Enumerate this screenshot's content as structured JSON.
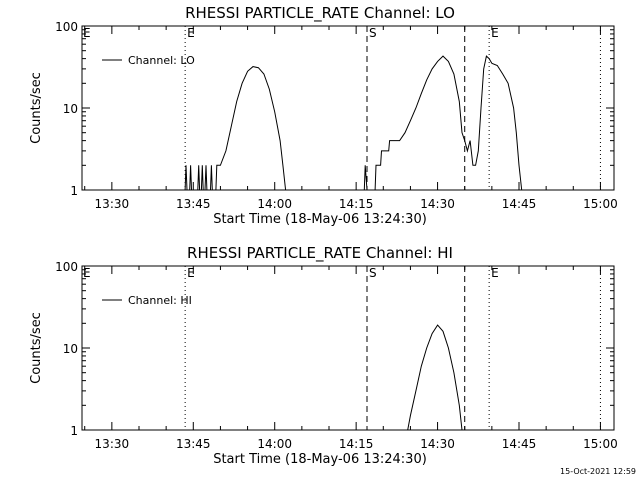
{
  "timestamp": "15-Oct-2021 12:59",
  "chart_data": [
    {
      "type": "line",
      "title": "RHESSI PARTICLE_RATE Channel: LO",
      "xlabel": "Start Time (18-May-06 13:24:30)",
      "ylabel": "Counts/sec",
      "yscale": "log",
      "ylim": [
        1,
        100
      ],
      "xlim": [
        "13:24:30",
        "15:02:30"
      ],
      "y_ticks": [
        "1",
        "10",
        "100"
      ],
      "x_ticks": [
        "13:30",
        "13:45",
        "14:00",
        "14:15",
        "14:30",
        "14:45",
        "15:00"
      ],
      "legend_placement": "top-left",
      "vertical_markers": [
        {
          "time": "13:43:30",
          "style": "dotted",
          "label": "E"
        },
        {
          "time": "14:17:00",
          "style": "dashed",
          "label": "S"
        },
        {
          "time": "14:35:00",
          "style": "dashed",
          "label": ""
        },
        {
          "time": "14:39:30",
          "style": "dotted",
          "label": "E"
        },
        {
          "time": "15:00:00",
          "style": "dotted",
          "label": ""
        }
      ],
      "corner_label": "E",
      "series": [
        {
          "name": "Channel: LO",
          "points": [
            [
              "13:43:30",
              1
            ],
            [
              "13:43:40",
              2
            ],
            [
              "13:43:50",
              1
            ],
            [
              "13:44:20",
              1
            ],
            [
              "13:44:30",
              2
            ],
            [
              "13:44:40",
              1
            ],
            [
              "13:45:50",
              1
            ],
            [
              "13:46:00",
              2
            ],
            [
              "13:46:10",
              1
            ],
            [
              "13:46:30",
              1
            ],
            [
              "13:46:40",
              2
            ],
            [
              "13:46:50",
              1
            ],
            [
              "13:47:10",
              1
            ],
            [
              "13:47:20",
              2
            ],
            [
              "13:47:30",
              1
            ],
            [
              "13:48:10",
              1
            ],
            [
              "13:48:20",
              2
            ],
            [
              "13:48:30",
              1
            ],
            [
              "13:49:10",
              1
            ],
            [
              "13:49:20",
              2
            ],
            [
              "13:50:00",
              2
            ],
            [
              "13:51:00",
              3
            ],
            [
              "13:52:00",
              6
            ],
            [
              "13:53:00",
              12
            ],
            [
              "13:54:00",
              20
            ],
            [
              "13:55:00",
              28
            ],
            [
              "13:56:00",
              32
            ],
            [
              "13:57:00",
              31
            ],
            [
              "13:58:00",
              26
            ],
            [
              "13:59:00",
              17
            ],
            [
              "14:00:00",
              9
            ],
            [
              "14:01:00",
              4
            ],
            [
              "14:01:30",
              2
            ],
            [
              "14:02:00",
              1
            ],
            [
              "14:16:30",
              1
            ],
            [
              "14:16:40",
              2
            ],
            [
              "14:17:00",
              1
            ],
            [
              "14:18:30",
              1
            ],
            [
              "14:18:40",
              2
            ],
            [
              "14:19:00",
              2
            ],
            [
              "14:19:30",
              2
            ],
            [
              "14:19:40",
              3
            ],
            [
              "14:21:00",
              3
            ],
            [
              "14:21:10",
              4
            ],
            [
              "14:23:00",
              4
            ],
            [
              "14:24:00",
              5
            ],
            [
              "14:25:00",
              7
            ],
            [
              "14:26:00",
              10
            ],
            [
              "14:27:00",
              15
            ],
            [
              "14:28:00",
              22
            ],
            [
              "14:29:00",
              30
            ],
            [
              "14:30:00",
              37
            ],
            [
              "14:31:00",
              43
            ],
            [
              "14:32:00",
              37
            ],
            [
              "14:33:00",
              26
            ],
            [
              "14:34:00",
              12
            ],
            [
              "14:34:30",
              5
            ],
            [
              "14:35:00",
              4
            ],
            [
              "14:35:30",
              3
            ],
            [
              "14:36:00",
              4
            ],
            [
              "14:36:30",
              2
            ],
            [
              "14:37:00",
              2
            ],
            [
              "14:37:30",
              3
            ],
            [
              "14:38:00",
              10
            ],
            [
              "14:38:30",
              30
            ],
            [
              "14:39:00",
              43
            ],
            [
              "14:39:30",
              40
            ],
            [
              "14:40:00",
              35
            ],
            [
              "14:41:00",
              33
            ],
            [
              "14:42:00",
              26
            ],
            [
              "14:43:00",
              20
            ],
            [
              "14:44:00",
              10
            ],
            [
              "14:44:30",
              5
            ],
            [
              "14:45:00",
              2
            ],
            [
              "14:45:30",
              1
            ]
          ]
        }
      ]
    },
    {
      "type": "line",
      "title": "RHESSI PARTICLE_RATE Channel: HI",
      "xlabel": "Start Time (18-May-06 13:24:30)",
      "ylabel": "Counts/sec",
      "yscale": "log",
      "ylim": [
        1,
        100
      ],
      "xlim": [
        "13:24:30",
        "15:02:30"
      ],
      "y_ticks": [
        "1",
        "10",
        "100"
      ],
      "x_ticks": [
        "13:30",
        "13:45",
        "14:00",
        "14:15",
        "14:30",
        "14:45",
        "15:00"
      ],
      "legend_placement": "top-left",
      "vertical_markers": [
        {
          "time": "13:43:30",
          "style": "dotted",
          "label": "E"
        },
        {
          "time": "14:17:00",
          "style": "dashed",
          "label": "S"
        },
        {
          "time": "14:35:00",
          "style": "dashed",
          "label": ""
        },
        {
          "time": "14:39:30",
          "style": "dotted",
          "label": "E"
        },
        {
          "time": "15:00:00",
          "style": "dotted",
          "label": ""
        }
      ],
      "corner_label": "E",
      "series": [
        {
          "name": "Channel: HI",
          "points": [
            [
              "14:24:30",
              1
            ],
            [
              "14:25:00",
              1.5
            ],
            [
              "14:26:00",
              3
            ],
            [
              "14:27:00",
              6
            ],
            [
              "14:28:00",
              10
            ],
            [
              "14:29:00",
              15
            ],
            [
              "14:30:00",
              19
            ],
            [
              "14:31:00",
              16
            ],
            [
              "14:32:00",
              10
            ],
            [
              "14:33:00",
              5
            ],
            [
              "14:34:00",
              2
            ],
            [
              "14:34:30",
              1
            ]
          ]
        }
      ]
    }
  ]
}
